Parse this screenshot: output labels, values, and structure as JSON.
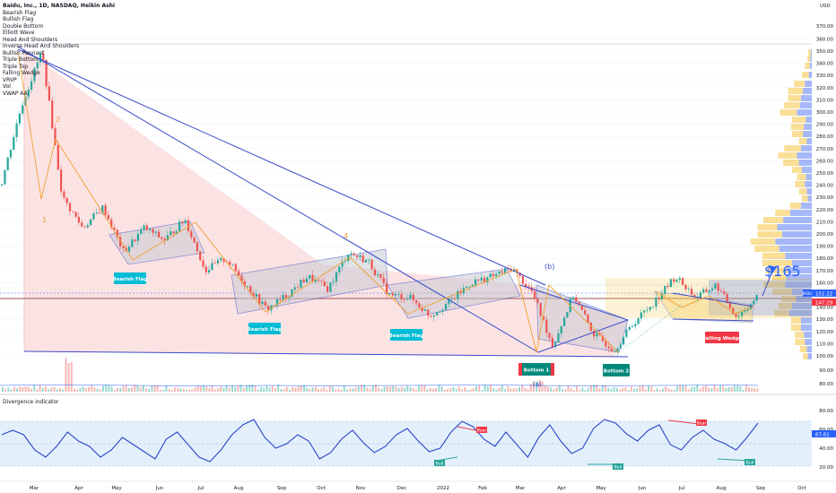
{
  "header": {
    "title": "Baidu, Inc., 1D, NASDAQ, Heikin Ashi",
    "currency": "USD"
  },
  "indicator_list": [
    "Bearish Flag",
    "Bullish Flag",
    "Double Bottom",
    "Elliott Wave",
    "Head And Shoulders",
    "Inverse Head And Shoulders",
    "Bullish Pennant",
    "Triple Bottom",
    "Triple Top",
    "Falling Wedge",
    "VRVP",
    "Vol",
    "VWAP AA"
  ],
  "price_axis": {
    "ticks": [
      360,
      350,
      340,
      330,
      320,
      310,
      300,
      290,
      280,
      270,
      260,
      250,
      240,
      230,
      220,
      210,
      200,
      190,
      180,
      170,
      160,
      150,
      140,
      130,
      120,
      110,
      100
    ],
    "tick_labels": [
      "360.00",
      "350.00",
      "340.00",
      "330.00",
      "320.00",
      "310.00",
      "300.00",
      "290.00",
      "280.00",
      "270.00",
      "260.00",
      "250.00",
      "240.00",
      "230.00",
      "220.00",
      "210.00",
      "200.00",
      "190.00",
      "180.00",
      "170.00",
      "160.00",
      "150.00",
      "140.00",
      "130.00",
      "120.00",
      "110.00",
      "100.00"
    ],
    "extra_ticks": [
      {
        "value": 370,
        "label": "370.00"
      },
      {
        "value": 90,
        "label": "90.00"
      },
      {
        "value": 80,
        "label": "80.00"
      }
    ],
    "current_price": {
      "label": "BIDU",
      "value": "151.22",
      "color": "#2962ff"
    },
    "ma_price": {
      "value": "147.29",
      "color": "#f23645"
    }
  },
  "time_axis": [
    "Mar",
    "Apr",
    "May",
    "Jun",
    "Jul",
    "Aug",
    "Sep",
    "Oct",
    "Nov",
    "Dec",
    "2022",
    "Feb",
    "Mar",
    "Apr",
    "May",
    "Jun",
    "Jul",
    "Aug",
    "Sep",
    "Oct"
  ],
  "annotations": {
    "bearish_flag_1": "Bearish Flag",
    "bearish_flag_2": "Bearish Flag",
    "bearish_flag_3": "Bearish Flag",
    "falling_wedge": "Falling Wedge",
    "bottom_1": "Bottom 1",
    "bottom_2": "Bottom 2",
    "target": "$165",
    "wave_1": "1",
    "wave_2": "2",
    "wave_4": "4",
    "wave_b": "(b)",
    "wave_a": "(a)"
  },
  "oscillator": {
    "title": "Divergence indicator",
    "ticks": [
      {
        "value": 80,
        "label": "80.00"
      },
      {
        "value": 60,
        "label": "60.00"
      },
      {
        "value": 40,
        "label": "40.00"
      },
      {
        "value": 20,
        "label": "20.00"
      }
    ],
    "current_value": "67.61",
    "labels": {
      "bear": "Bear",
      "bull": "Bull"
    }
  },
  "colors": {
    "wedge_fill": "#f5c6c8",
    "trend_line": "#3a4bc9",
    "zigzag": "#f0a030",
    "candle_up": "#26a69a",
    "candle_down": "#ef5350",
    "flag_fill": "#b2b5be",
    "label_bg": "#00bcd4",
    "bottom_bg": "#00897b",
    "falling_wedge_bg": "#f23645",
    "rsi_line": "#2a44c8",
    "rsi_band": "#e3f0fb",
    "vrvp_blue": "#5b7ef5",
    "vrvp_yellow": "#f5c542"
  },
  "chart_data": {
    "type": "line",
    "title": "Baidu, Inc., 1D, NASDAQ, Heikin Ashi",
    "xlabel": "",
    "ylabel": "",
    "ylim": [
      100,
      360
    ],
    "x": [
      "Feb",
      "Feb",
      "Mar",
      "Mar",
      "Apr",
      "Apr",
      "May",
      "May",
      "Jun",
      "Jun",
      "Jul",
      "Jul",
      "Aug",
      "Aug",
      "Sep",
      "Sep",
      "Oct",
      "Oct",
      "Nov",
      "Nov",
      "Dec",
      "Dec",
      "2022",
      "2022",
      "Feb",
      "Feb",
      "Mar",
      "Mar",
      "Apr",
      "Apr",
      "May",
      "May",
      "Jun",
      "Jun",
      "Jul",
      "Jul",
      "Aug",
      "Aug"
    ],
    "series": [
      {
        "values": [
          240,
          305,
          350,
          230,
          205,
          222,
          185,
          205,
          195,
          212,
          170,
          180,
          158,
          138,
          150,
          165,
          155,
          185,
          177,
          150,
          148,
          133,
          145,
          160,
          165,
          172,
          152,
          108,
          150,
          118,
          105,
          128,
          145,
          165,
          148,
          158,
          132,
          148
        ]
      }
    ]
  }
}
